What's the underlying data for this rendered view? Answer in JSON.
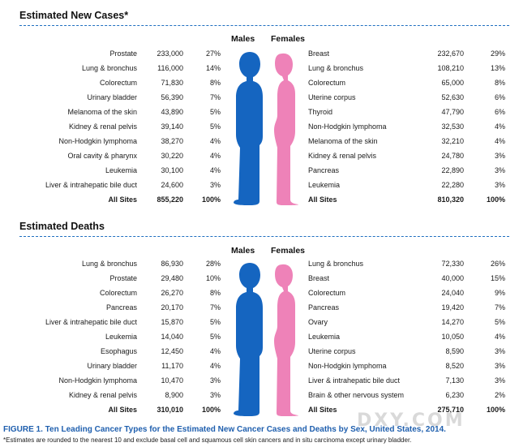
{
  "colors": {
    "male": "#1565c0",
    "female": "#ee82b8",
    "rule": "#1f6fc0",
    "caption": "#1f5fae"
  },
  "headers": {
    "males": "Males",
    "females": "Females"
  },
  "new_cases": {
    "title": "Estimated New Cases*",
    "males": [
      {
        "site": "Prostate",
        "count": "233,000",
        "pct": "27%"
      },
      {
        "site": "Lung & bronchus",
        "count": "116,000",
        "pct": "14%"
      },
      {
        "site": "Colorectum",
        "count": "71,830",
        "pct": "8%"
      },
      {
        "site": "Urinary bladder",
        "count": "56,390",
        "pct": "7%"
      },
      {
        "site": "Melanoma of the skin",
        "count": "43,890",
        "pct": "5%"
      },
      {
        "site": "Kidney & renal pelvis",
        "count": "39,140",
        "pct": "5%"
      },
      {
        "site": "Non-Hodgkin lymphoma",
        "count": "38,270",
        "pct": "4%"
      },
      {
        "site": "Oral cavity & pharynx",
        "count": "30,220",
        "pct": "4%"
      },
      {
        "site": "Leukemia",
        "count": "30,100",
        "pct": "4%"
      },
      {
        "site": "Liver & intrahepatic bile duct",
        "count": "24,600",
        "pct": "3%"
      }
    ],
    "males_total": {
      "site": "All Sites",
      "count": "855,220",
      "pct": "100%"
    },
    "females": [
      {
        "site": "Breast",
        "count": "232,670",
        "pct": "29%"
      },
      {
        "site": "Lung & bronchus",
        "count": "108,210",
        "pct": "13%"
      },
      {
        "site": "Colorectum",
        "count": "65,000",
        "pct": "8%"
      },
      {
        "site": "Uterine corpus",
        "count": "52,630",
        "pct": "6%"
      },
      {
        "site": "Thyroid",
        "count": "47,790",
        "pct": "6%"
      },
      {
        "site": "Non-Hodgkin lymphoma",
        "count": "32,530",
        "pct": "4%"
      },
      {
        "site": "Melanoma of the skin",
        "count": "32,210",
        "pct": "4%"
      },
      {
        "site": "Kidney & renal pelvis",
        "count": "24,780",
        "pct": "3%"
      },
      {
        "site": "Pancreas",
        "count": "22,890",
        "pct": "3%"
      },
      {
        "site": "Leukemia",
        "count": "22,280",
        "pct": "3%"
      }
    ],
    "females_total": {
      "site": "All Sites",
      "count": "810,320",
      "pct": "100%"
    }
  },
  "deaths": {
    "title": "Estimated Deaths",
    "males": [
      {
        "site": "Lung & bronchus",
        "count": "86,930",
        "pct": "28%"
      },
      {
        "site": "Prostate",
        "count": "29,480",
        "pct": "10%"
      },
      {
        "site": "Colorectum",
        "count": "26,270",
        "pct": "8%"
      },
      {
        "site": "Pancreas",
        "count": "20,170",
        "pct": "7%"
      },
      {
        "site": "Liver & intrahepatic bile duct",
        "count": "15,870",
        "pct": "5%"
      },
      {
        "site": "Leukemia",
        "count": "14,040",
        "pct": "5%"
      },
      {
        "site": "Esophagus",
        "count": "12,450",
        "pct": "4%"
      },
      {
        "site": "Urinary bladder",
        "count": "11,170",
        "pct": "4%"
      },
      {
        "site": "Non-Hodgkin lymphoma",
        "count": "10,470",
        "pct": "3%"
      },
      {
        "site": "Kidney & renal pelvis",
        "count": "8,900",
        "pct": "3%"
      }
    ],
    "males_total": {
      "site": "All Sites",
      "count": "310,010",
      "pct": "100%"
    },
    "females": [
      {
        "site": "Lung & bronchus",
        "count": "72,330",
        "pct": "26%"
      },
      {
        "site": "Breast",
        "count": "40,000",
        "pct": "15%"
      },
      {
        "site": "Colorectum",
        "count": "24,040",
        "pct": "9%"
      },
      {
        "site": "Pancreas",
        "count": "19,420",
        "pct": "7%"
      },
      {
        "site": "Ovary",
        "count": "14,270",
        "pct": "5%"
      },
      {
        "site": "Leukemia",
        "count": "10,050",
        "pct": "4%"
      },
      {
        "site": "Uterine corpus",
        "count": "8,590",
        "pct": "3%"
      },
      {
        "site": "Non-Hodgkin lymphoma",
        "count": "8,520",
        "pct": "3%"
      },
      {
        "site": "Liver & intrahepatic bile duct",
        "count": "7,130",
        "pct": "3%"
      },
      {
        "site": "Brain & other nervous system",
        "count": "6,230",
        "pct": "2%"
      }
    ],
    "females_total": {
      "site": "All Sites",
      "count": "275,710",
      "pct": "100%"
    }
  },
  "caption": "FIGURE 1. Ten Leading Cancer Types for the Estimated New Cancer Cases and Deaths by Sex, United States, 2014.",
  "footnote": "*Estimates are rounded to the nearest 10 and exclude basal cell and squamous cell skin cancers and in situ carcinoma except urinary bladder.",
  "watermark": "DXY.COM"
}
